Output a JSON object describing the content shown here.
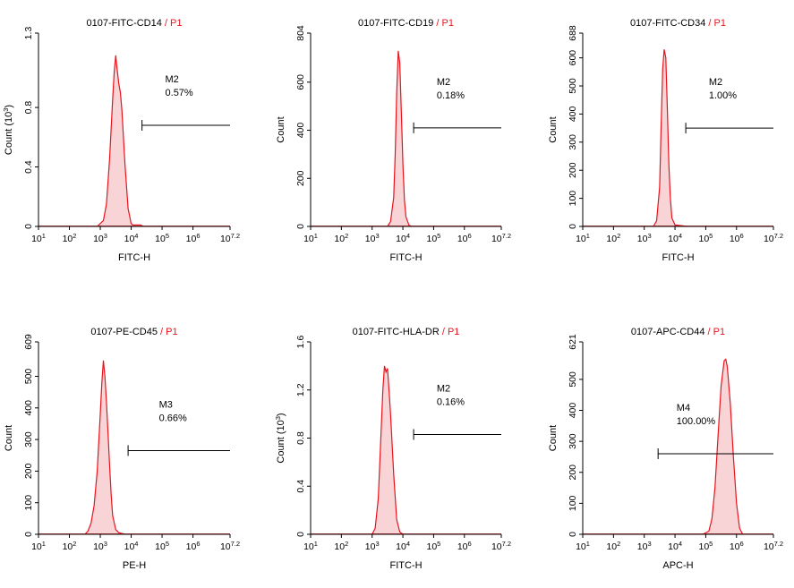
{
  "colors": {
    "histogram_stroke": "#e8141d",
    "histogram_fill": "#f9d4d6",
    "axis": "#000000",
    "gate_line": "#000000"
  },
  "chart_data": [
    {
      "type": "area",
      "title": "0107-FITC-CD14",
      "title_suffix": "P1",
      "xlabel": "FITC-H",
      "ylabel": "Count (10",
      "ylabel_sup": "3",
      "ylabel_close": ")",
      "ylim": [
        0,
        1.3
      ],
      "yticks": [
        "0",
        "0.4",
        "0.8",
        "1.3"
      ],
      "ytick_values": [
        0,
        0.4,
        0.8,
        1.3
      ],
      "xscale": "log",
      "xlim": [
        1,
        7.2
      ],
      "xticks": [
        {
          "base": "10",
          "exp": "1",
          "v": 1
        },
        {
          "base": "10",
          "exp": "2",
          "v": 2
        },
        {
          "base": "10",
          "exp": "3",
          "v": 3
        },
        {
          "base": "10",
          "exp": "4",
          "v": 4
        },
        {
          "base": "10",
          "exp": "5",
          "v": 5
        },
        {
          "base": "10",
          "exp": "6",
          "v": 6
        },
        {
          "base": "10",
          "exp": "7.2",
          "v": 7.2
        }
      ],
      "x": [
        2.9,
        3.1,
        3.2,
        3.3,
        3.4,
        3.45,
        3.5,
        3.55,
        3.6,
        3.65,
        3.7,
        3.8,
        3.9,
        4.0,
        4.05,
        4.1,
        4.3,
        4.4
      ],
      "y": [
        0,
        0.04,
        0.15,
        0.45,
        0.85,
        1.04,
        1.15,
        1.05,
        0.96,
        0.9,
        0.78,
        0.42,
        0.12,
        0.02,
        0.01,
        0.01,
        0.01,
        0
      ],
      "gate": {
        "name": "M2",
        "percent": "0.57%",
        "x_start": 4.35,
        "x_end": 7.2,
        "y": 0.68
      }
    },
    {
      "type": "area",
      "title": "0107-FITC-CD19",
      "title_suffix": "P1",
      "xlabel": "FITC-H",
      "ylabel": "Count",
      "ylabel_sup": "",
      "ylabel_close": "",
      "ylim": [
        0,
        804
      ],
      "yticks": [
        "0",
        "200",
        "400",
        "600",
        "804"
      ],
      "ytick_values": [
        0,
        200,
        400,
        600,
        804
      ],
      "xscale": "log",
      "xlim": [
        1,
        7.2
      ],
      "xticks": [
        {
          "base": "10",
          "exp": "1",
          "v": 1
        },
        {
          "base": "10",
          "exp": "2",
          "v": 2
        },
        {
          "base": "10",
          "exp": "3",
          "v": 3
        },
        {
          "base": "10",
          "exp": "4",
          "v": 4
        },
        {
          "base": "10",
          "exp": "5",
          "v": 5
        },
        {
          "base": "10",
          "exp": "6",
          "v": 6
        },
        {
          "base": "10",
          "exp": "7.2",
          "v": 7.2
        }
      ],
      "x": [
        3.5,
        3.6,
        3.7,
        3.75,
        3.8,
        3.85,
        3.9,
        3.95,
        4.0,
        4.05,
        4.1,
        4.2,
        4.3
      ],
      "y": [
        0,
        20,
        120,
        300,
        560,
        730,
        680,
        480,
        260,
        110,
        40,
        5,
        0
      ],
      "gate": {
        "name": "M2",
        "percent": "0.18%",
        "x_start": 4.35,
        "x_end": 7.2,
        "y": 410
      }
    },
    {
      "type": "area",
      "title": "0107-FITC-CD34",
      "title_suffix": "P1",
      "xlabel": "FITC-H",
      "ylabel": "Count",
      "ylabel_sup": "",
      "ylabel_close": "",
      "ylim": [
        0,
        688
      ],
      "yticks": [
        "0",
        "100",
        "200",
        "300",
        "400",
        "500",
        "600",
        "688"
      ],
      "ytick_values": [
        0,
        100,
        200,
        300,
        400,
        500,
        600,
        688
      ],
      "xscale": "log",
      "xlim": [
        1,
        7.2
      ],
      "xticks": [
        {
          "base": "10",
          "exp": "1",
          "v": 1
        },
        {
          "base": "10",
          "exp": "2",
          "v": 2
        },
        {
          "base": "10",
          "exp": "3",
          "v": 3
        },
        {
          "base": "10",
          "exp": "4",
          "v": 4
        },
        {
          "base": "10",
          "exp": "5",
          "v": 5
        },
        {
          "base": "10",
          "exp": "6",
          "v": 6
        },
        {
          "base": "10",
          "exp": "7.2",
          "v": 7.2
        }
      ],
      "x": [
        3.3,
        3.4,
        3.5,
        3.55,
        3.6,
        3.65,
        3.7,
        3.75,
        3.8,
        3.85,
        3.9,
        4.0,
        4.2,
        4.4
      ],
      "y": [
        0,
        20,
        140,
        360,
        560,
        630,
        600,
        420,
        220,
        100,
        30,
        5,
        3,
        0
      ],
      "gate": {
        "name": "M2",
        "percent": "1.00%",
        "x_start": 4.35,
        "x_end": 7.2,
        "y": 350
      }
    },
    {
      "type": "area",
      "title": "0107-PE-CD45",
      "title_suffix": "P1",
      "xlabel": "PE-H",
      "ylabel": "Count",
      "ylabel_sup": "",
      "ylabel_close": "",
      "ylim": [
        0,
        609
      ],
      "yticks": [
        "0",
        "100",
        "200",
        "300",
        "400",
        "500",
        "609"
      ],
      "ytick_values": [
        0,
        100,
        200,
        300,
        400,
        500,
        609
      ],
      "xscale": "log",
      "xlim": [
        1,
        7.2
      ],
      "xticks": [
        {
          "base": "10",
          "exp": "1",
          "v": 1
        },
        {
          "base": "10",
          "exp": "2",
          "v": 2
        },
        {
          "base": "10",
          "exp": "3",
          "v": 3
        },
        {
          "base": "10",
          "exp": "4",
          "v": 4
        },
        {
          "base": "10",
          "exp": "5",
          "v": 5
        },
        {
          "base": "10",
          "exp": "6",
          "v": 6
        },
        {
          "base": "10",
          "exp": "7.2",
          "v": 7.2
        }
      ],
      "x": [
        2.5,
        2.6,
        2.7,
        2.8,
        2.9,
        3.0,
        3.05,
        3.1,
        3.15,
        3.2,
        3.25,
        3.3,
        3.35,
        3.4,
        3.5,
        3.6,
        3.8
      ],
      "y": [
        0,
        10,
        35,
        90,
        200,
        380,
        480,
        550,
        500,
        420,
        320,
        220,
        130,
        60,
        15,
        5,
        0
      ],
      "gate": {
        "name": "M3",
        "percent": "0.66%",
        "x_start": 3.9,
        "x_end": 7.2,
        "y": 265
      }
    },
    {
      "type": "area",
      "title": "0107-FITC-HLA-DR",
      "title_suffix": "P1",
      "xlabel": "FITC-H",
      "ylabel": "Count (10",
      "ylabel_sup": "3",
      "ylabel_close": ")",
      "ylim": [
        0,
        1.6
      ],
      "yticks": [
        "0",
        "0.4",
        "0.8",
        "1.2",
        "1.6"
      ],
      "ytick_values": [
        0,
        0.4,
        0.8,
        1.2,
        1.6
      ],
      "xscale": "log",
      "xlim": [
        1,
        7.2
      ],
      "xticks": [
        {
          "base": "10",
          "exp": "1",
          "v": 1
        },
        {
          "base": "10",
          "exp": "2",
          "v": 2
        },
        {
          "base": "10",
          "exp": "3",
          "v": 3
        },
        {
          "base": "10",
          "exp": "4",
          "v": 4
        },
        {
          "base": "10",
          "exp": "5",
          "v": 5
        },
        {
          "base": "10",
          "exp": "6",
          "v": 6
        },
        {
          "base": "10",
          "exp": "7.2",
          "v": 7.2
        }
      ],
      "x": [
        3.0,
        3.1,
        3.2,
        3.3,
        3.35,
        3.4,
        3.45,
        3.5,
        3.55,
        3.6,
        3.7,
        3.8,
        3.9,
        4.0
      ],
      "y": [
        0,
        0.05,
        0.3,
        0.9,
        1.2,
        1.4,
        1.35,
        1.38,
        1.2,
        1.0,
        0.5,
        0.12,
        0.02,
        0
      ],
      "gate": {
        "name": "M2",
        "percent": "0.16%",
        "x_start": 4.35,
        "x_end": 7.2,
        "y": 0.83
      }
    },
    {
      "type": "area",
      "title": "0107-APC-CD44",
      "title_suffix": "P1",
      "xlabel": "APC-H",
      "ylabel": "Count",
      "ylabel_sup": "",
      "ylabel_close": "",
      "ylim": [
        0,
        621
      ],
      "yticks": [
        "0",
        "100",
        "200",
        "300",
        "400",
        "500",
        "621"
      ],
      "ytick_values": [
        0,
        100,
        200,
        300,
        400,
        500,
        621
      ],
      "xscale": "log",
      "xlim": [
        1,
        7.2
      ],
      "xticks": [
        {
          "base": "10",
          "exp": "1",
          "v": 1
        },
        {
          "base": "10",
          "exp": "2",
          "v": 2
        },
        {
          "base": "10",
          "exp": "3",
          "v": 3
        },
        {
          "base": "10",
          "exp": "4",
          "v": 4
        },
        {
          "base": "10",
          "exp": "5",
          "v": 5
        },
        {
          "base": "10",
          "exp": "6",
          "v": 6
        },
        {
          "base": "10",
          "exp": "7.2",
          "v": 7.2
        }
      ],
      "x": [
        4.9,
        5.1,
        5.2,
        5.3,
        5.4,
        5.5,
        5.6,
        5.65,
        5.7,
        5.8,
        5.9,
        6.0,
        6.1,
        6.2
      ],
      "y": [
        0,
        10,
        50,
        150,
        320,
        480,
        560,
        565,
        540,
        420,
        250,
        100,
        20,
        0
      ],
      "gate": {
        "name": "M4",
        "percent": "100.00%",
        "x_start": 3.45,
        "x_end": 7.2,
        "y": 260
      }
    }
  ]
}
